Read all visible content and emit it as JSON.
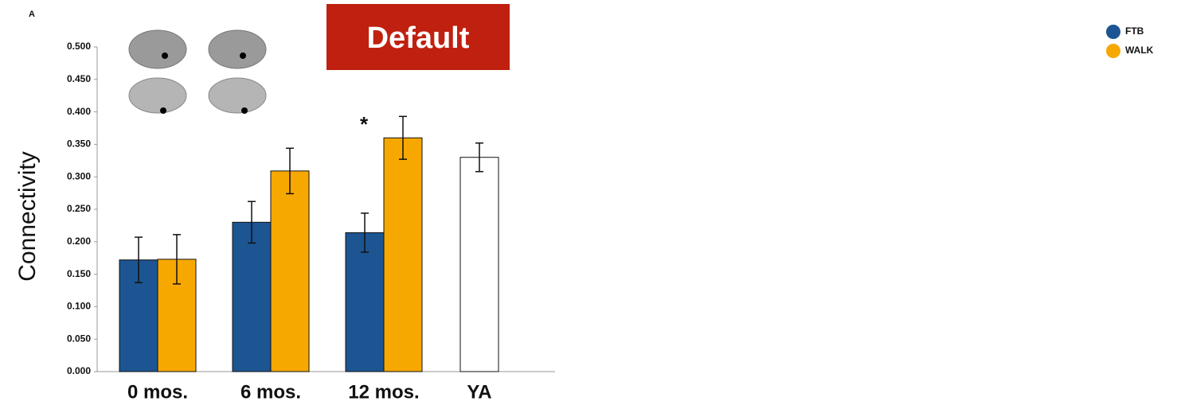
{
  "chart_data": {
    "type": "bar",
    "panel": "A",
    "title": "Default",
    "y_label": "Connectivity",
    "annotation": "*",
    "categories": [
      "0 mos.",
      "6 mos.",
      "12 mos.",
      "YA"
    ],
    "series": [
      {
        "name": "FTB",
        "color": "#1d5592",
        "values": [
          0.172,
          0.23,
          0.214,
          null
        ],
        "errors": [
          0.035,
          0.032,
          0.03,
          null
        ]
      },
      {
        "name": "WALK",
        "color": "#f7a800",
        "values": [
          0.173,
          0.309,
          0.36,
          null
        ],
        "errors": [
          0.038,
          0.035,
          0.033,
          null
        ]
      },
      {
        "color": "#ffffff",
        "values": [
          null,
          null,
          null,
          0.33
        ],
        "errors": [
          null,
          null,
          null,
          0.022
        ]
      }
    ],
    "ylim": [
      0,
      0.5
    ],
    "yticks": [
      {
        "value": 0,
        "label": "0.000"
      },
      {
        "value": 0.05,
        "label": "0.050"
      },
      {
        "value": 0.1,
        "label": "0.100"
      },
      {
        "value": 0.15,
        "label": "0.150"
      },
      {
        "value": 0.2,
        "label": "0.200"
      },
      {
        "value": 0.25,
        "label": "0.250"
      },
      {
        "value": 0.3,
        "label": "0.300"
      },
      {
        "value": 0.35,
        "label": "0.350"
      },
      {
        "value": 0.4,
        "label": "0.400"
      },
      {
        "value": 0.45,
        "label": "0.450"
      },
      {
        "value": 0.5,
        "label": "0.500"
      }
    ],
    "grid": false,
    "legend": "top-right"
  }
}
